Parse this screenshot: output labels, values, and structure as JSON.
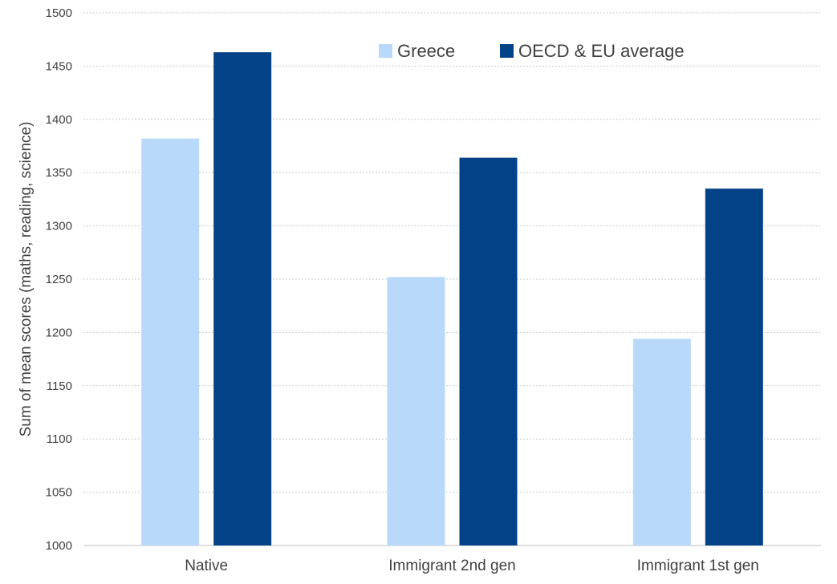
{
  "chart_data": {
    "type": "bar",
    "title": "",
    "xlabel": "",
    "ylabel": "Sum of mean scores (maths, reading, science)",
    "ylim": [
      1000,
      1500
    ],
    "yticks": [
      1000,
      1050,
      1100,
      1150,
      1200,
      1250,
      1300,
      1350,
      1400,
      1450,
      1500
    ],
    "grid": "horizontal-dotted",
    "legend_position": "top-right",
    "categories": [
      "Native",
      "Immigrant 2nd gen",
      "Immigrant 1st gen"
    ],
    "series": [
      {
        "name": "Greece",
        "color": "#b8d9fa",
        "values": [
          1382,
          1252,
          1194
        ]
      },
      {
        "name": "OECD & EU average",
        "color": "#034286",
        "values": [
          1463,
          1364,
          1335
        ]
      }
    ]
  }
}
